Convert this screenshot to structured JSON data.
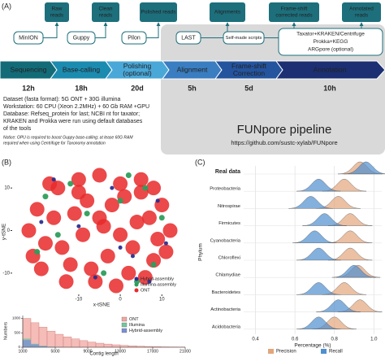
{
  "panel_labels": [
    "(A)",
    "(B)",
    "(C)"
  ],
  "pipeline": {
    "outputs": [
      [
        "Raw",
        "reads"
      ],
      [
        "Clean",
        "reads"
      ],
      [
        "Polished reads"
      ],
      [
        "Alignments"
      ],
      [
        "Frame-shift",
        "corrected reads"
      ],
      [
        "Annotated",
        "reads"
      ]
    ],
    "tools": [
      "MinION",
      "Guppy",
      "Pilon",
      "LAST",
      "Self-made scripts"
    ],
    "annotation_tools": [
      "Taxator+KRAKEN/Centrifuge",
      "Prokka+KEGG",
      "ARGpore (optional)"
    ],
    "stages": [
      [
        "Sequencing"
      ],
      [
        "Base-calling"
      ],
      [
        "Polishing",
        "(optional)"
      ],
      [
        "Alignment"
      ],
      [
        "Frame-shift",
        "Correction"
      ],
      [
        "Annotation"
      ]
    ],
    "times": [
      "12h",
      "18h",
      "20d",
      "5h",
      "5d",
      "10h"
    ]
  },
  "notes": [
    "Dataset (fasta format): 5G ONT + 30G illumina",
    "Workstation:  60 CPU (Xeon 2.2MHz) + 60 Gb RAM +GPU",
    "Database:  Refseq_protein for last; NCBI nt for  taxator;",
    "KRAKEN and Prokka were run using default databases",
    "of the tools"
  ],
  "notice": [
    "Notice: GPU is required to boost Guppy base-calling; at lease 60G RAM",
    "required when using Centrifuge for Taxonomy annotation"
  ],
  "box": {
    "title": "FUNpore pipeline",
    "url": "https://github.com/sustc-xylab/FUNpore"
  },
  "chart_data": [
    {
      "type": "scatter",
      "xlabel": "x-tSNE",
      "ylabel": "y-tSNE",
      "xlim": [
        -26,
        16
      ],
      "ylim": [
        -15,
        15
      ],
      "xticks": [
        -10,
        0,
        10
      ],
      "yticks": [
        -10,
        0,
        10
      ],
      "series": [
        {
          "name": "Hybrid-assembly",
          "color": "#2b2f8f",
          "x": [
            -16,
            -6,
            3,
            9,
            -10,
            -2,
            7,
            -19,
            0,
            11
          ],
          "values": [
            12,
            -11,
            -6,
            7,
            1,
            10,
            -12,
            2,
            -4,
            -3
          ]
        },
        {
          "name": "Illumina-assembly",
          "color": "#2e9e5b",
          "x": [
            -18,
            -12,
            -4,
            2,
            8,
            -20,
            -8,
            4,
            10,
            -15,
            0,
            6
          ],
          "values": [
            8,
            11,
            -10,
            13,
            -8,
            -5,
            4,
            -12,
            3,
            -1,
            7,
            10
          ]
        },
        {
          "name": "ONT",
          "color": "#e8292a",
          "x": [
            -20,
            -15,
            -10,
            -5,
            0,
            5,
            10,
            -18,
            -12,
            -6,
            2,
            8,
            12,
            -22,
            -16,
            -8,
            -2,
            4,
            9,
            -14,
            -9,
            -3,
            3,
            7,
            -19,
            -11,
            -4,
            1,
            6,
            11,
            -17,
            -7,
            0,
            5,
            -13,
            -1,
            -21,
            -10,
            8,
            -5
          ],
          "values": [
            5,
            10,
            12,
            13,
            11,
            9,
            6,
            -3,
            -8,
            -12,
            -10,
            -7,
            0,
            0,
            3,
            7,
            6,
            2,
            -2,
            -4,
            -1,
            -6,
            -4,
            3,
            -9,
            4,
            1,
            8,
            -11,
            -5,
            11,
            -9,
            -1,
            12,
            -12,
            -13,
            -6,
            9,
            10,
            3
          ]
        }
      ]
    },
    {
      "type": "histogram",
      "xlabel": "Contig length",
      "ylabel": "Numbers",
      "bins": [
        1000,
        2000,
        3000,
        4000,
        5000,
        6000,
        7000,
        8000,
        9000,
        10000,
        11000,
        12000,
        13000,
        14000,
        15000,
        16000,
        17000,
        18000,
        19000,
        20000,
        21000
      ],
      "xlim": [
        1000,
        21000
      ],
      "xticks": [
        1000,
        5000,
        9000,
        13000,
        17000,
        21000
      ],
      "ylim": [
        0,
        1100
      ],
      "yticks": [
        0,
        500,
        1000
      ],
      "series": [
        {
          "name": "ONT",
          "color": "#f2a6a0",
          "values": [
            1000,
            850,
            700,
            560,
            450,
            360,
            290,
            230,
            180,
            140,
            110,
            85,
            65,
            50,
            38,
            28,
            20,
            14,
            10,
            6
          ]
        },
        {
          "name": "Illumina",
          "color": "#74c69d",
          "values": [
            300,
            120,
            50,
            20,
            8,
            3,
            1,
            0,
            0,
            0,
            0,
            0,
            0,
            0,
            0,
            0,
            0,
            0,
            0,
            0
          ]
        },
        {
          "name": "Hybrid-assembly",
          "color": "#7b8fd6",
          "values": [
            250,
            100,
            40,
            15,
            6,
            2,
            1,
            0,
            0,
            0,
            0,
            0,
            0,
            0,
            0,
            0,
            0,
            0,
            0,
            0
          ]
        }
      ]
    },
    {
      "type": "ridgeline",
      "xlabel": "Percentage (%)",
      "ylabel": "Phylum",
      "grid": true,
      "categories": [
        "Real data",
        "Proteobacteria",
        "Nitrospirae",
        "Firmicutes",
        "Cyanobacteria",
        "Chloroflexi",
        "Chlamydiae",
        "Bacteroidetes",
        "Actinobacteria",
        "Acidobacteria"
      ],
      "xlim": [
        0.34,
        1.04
      ],
      "xticks": [
        0.4,
        0.6,
        0.8,
        {
          "value": 1,
          "label": "1.0"
        }
      ],
      "series": [
        {
          "name": "Precision",
          "color": "#e3a57c",
          "values": [
            0.93,
            0.85,
            0.82,
            0.88,
            0.88,
            0.88,
            0.92,
            0.85,
            0.93,
            0.8
          ]
        },
        {
          "name": "Recall",
          "color": "#4f8fcf",
          "values": [
            0.96,
            0.72,
            0.68,
            0.75,
            0.7,
            0.72,
            0.9,
            0.72,
            0.82,
            0.72
          ]
        }
      ]
    }
  ]
}
